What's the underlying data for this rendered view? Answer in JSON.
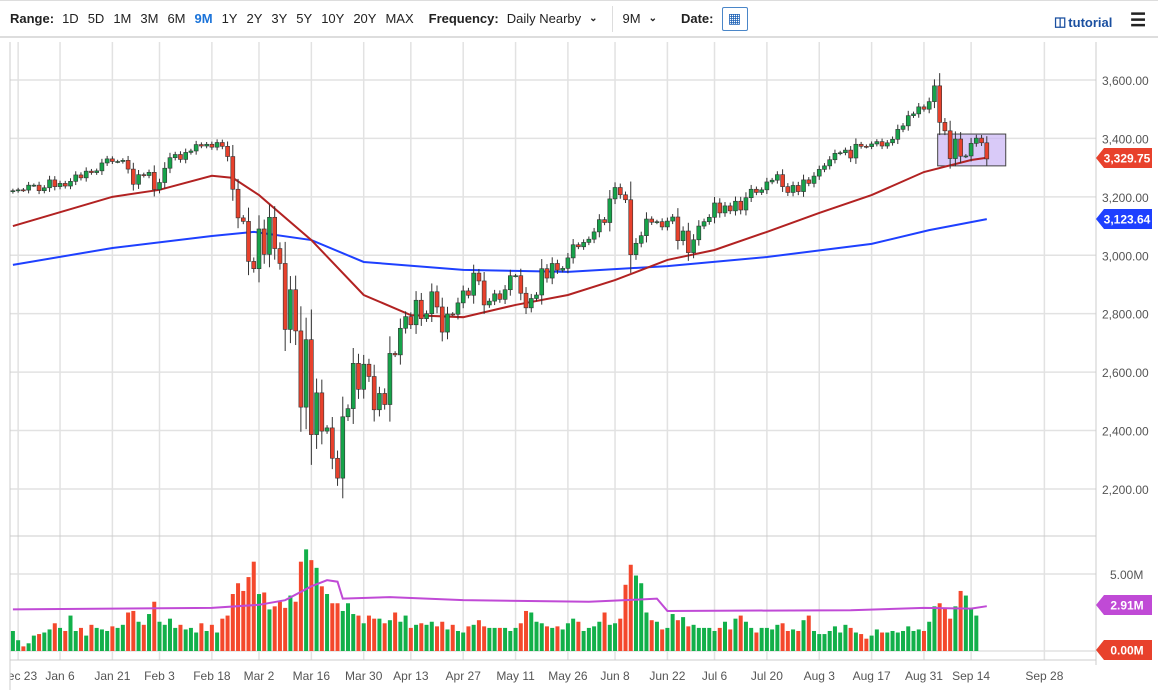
{
  "toolbar": {
    "range_label": "Range:",
    "ranges": [
      "1D",
      "5D",
      "1M",
      "3M",
      "6M",
      "9M",
      "1Y",
      "2Y",
      "3Y",
      "5Y",
      "10Y",
      "20Y",
      "MAX"
    ],
    "active_range": "9M",
    "frequency_label": "Frequency:",
    "frequency_value": "Daily Nearby",
    "period_value": "9M",
    "date_label": "Date:",
    "tutorial_label": "tutorial",
    "icons": {
      "calendar": "calendar-icon",
      "tutorial": "film-icon",
      "menu": "hamburger-menu-icon"
    }
  },
  "chart_data": [
    {
      "type": "candlestick",
      "title": "",
      "ylim": [
        2100,
        3700
      ],
      "y_ticks": [
        "2,200.00",
        "2,400.00",
        "2,600.00",
        "2,800.00",
        "3,000.00",
        "3,200.00",
        "3,400.00",
        "3,600.00"
      ],
      "y_tick_values": [
        2200,
        2400,
        2600,
        2800,
        3000,
        3200,
        3400,
        3600
      ],
      "grid": true,
      "colors": {
        "up": "#16a34a",
        "down": "#e8412c",
        "ma_red": "#b22222",
        "ma_blue": "#1e40ff",
        "box": "#c9b3f5"
      },
      "x_ticks": [
        {
          "label": "Dec 23",
          "index": 1
        },
        {
          "label": "Jan 6",
          "index": 9
        },
        {
          "label": "Jan 21",
          "index": 19
        },
        {
          "label": "Feb 3",
          "index": 28
        },
        {
          "label": "Feb 18",
          "index": 38
        },
        {
          "label": "Mar 2",
          "index": 47
        },
        {
          "label": "Mar 16",
          "index": 57
        },
        {
          "label": "Mar 30",
          "index": 67
        },
        {
          "label": "Apr 13",
          "index": 76
        },
        {
          "label": "Apr 27",
          "index": 86
        },
        {
          "label": "May 11",
          "index": 96
        },
        {
          "label": "May 26",
          "index": 106
        },
        {
          "label": "Jun 8",
          "index": 115
        },
        {
          "label": "Jun 22",
          "index": 125
        },
        {
          "label": "Jul 6",
          "index": 134
        },
        {
          "label": "Jul 20",
          "index": 144
        },
        {
          "label": "Aug 3",
          "index": 154
        },
        {
          "label": "Aug 17",
          "index": 164
        },
        {
          "label": "Aug 31",
          "index": 174
        },
        {
          "label": "Sep 14",
          "index": 183
        },
        {
          "label": "Sep 28",
          "index": 197
        }
      ],
      "close": [
        3221,
        3224,
        3223,
        3240,
        3240,
        3221,
        3231,
        3258,
        3235,
        3246,
        3237,
        3253,
        3275,
        3265,
        3288,
        3283,
        3289,
        3316,
        3330,
        3321,
        3321,
        3325,
        3295,
        3243,
        3276,
        3273,
        3284,
        3225,
        3249,
        3298,
        3334,
        3345,
        3328,
        3352,
        3357,
        3379,
        3374,
        3380,
        3370,
        3386,
        3373,
        3338,
        3226,
        3128,
        3116,
        2979,
        2954,
        3090,
        3003,
        3130,
        3023,
        2972,
        2746,
        2882,
        2741,
        2480,
        2711,
        2386,
        2529,
        2398,
        2409,
        2305,
        2237,
        2447,
        2475,
        2630,
        2541,
        2627,
        2585,
        2471,
        2527,
        2489,
        2664,
        2659,
        2750,
        2790,
        2762,
        2846,
        2783,
        2800,
        2875,
        2823,
        2737,
        2799,
        2798,
        2837,
        2878,
        2863,
        2939,
        2912,
        2830,
        2843,
        2868,
        2849,
        2882,
        2930,
        2930,
        2870,
        2820,
        2852,
        2864,
        2954,
        2922,
        2972,
        2949,
        2955,
        2991,
        3036,
        3029,
        3044,
        3055,
        3080,
        3122,
        3112,
        3193,
        3232,
        3207,
        3190,
        3002,
        3041,
        3067,
        3124,
        3113,
        3115,
        3097,
        3117,
        3131,
        3050,
        3083,
        3009,
        3053,
        3100,
        3115,
        3130,
        3179,
        3145,
        3169,
        3152,
        3185,
        3155,
        3197,
        3226,
        3215,
        3224,
        3251,
        3257,
        3276,
        3235,
        3215,
        3239,
        3218,
        3258,
        3246,
        3271,
        3294,
        3306,
        3327,
        3349,
        3351,
        3360,
        3333,
        3380,
        3373,
        3372,
        3381,
        3389,
        3374,
        3385,
        3397,
        3431,
        3443,
        3478,
        3484,
        3508,
        3500,
        3526,
        3580,
        3455,
        3426,
        3331,
        3398,
        3339,
        3340,
        3383,
        3401,
        3385,
        3329.75
      ],
      "ma_red": [
        [
          0,
          3100
        ],
        [
          19,
          3200
        ],
        [
          28,
          3224
        ],
        [
          38,
          3272
        ],
        [
          42,
          3265
        ],
        [
          47,
          3206
        ],
        [
          57,
          3052
        ],
        [
          67,
          2864
        ],
        [
          76,
          2795
        ],
        [
          86,
          2788
        ],
        [
          96,
          2830
        ],
        [
          106,
          2864
        ],
        [
          115,
          2915
        ],
        [
          125,
          2984
        ],
        [
          134,
          3018
        ],
        [
          144,
          3080
        ],
        [
          154,
          3145
        ],
        [
          164,
          3206
        ],
        [
          174,
          3285
        ],
        [
          183,
          3326
        ],
        [
          186,
          3334
        ]
      ],
      "ma_blue": [
        [
          0,
          2967
        ],
        [
          19,
          3025
        ],
        [
          38,
          3066
        ],
        [
          46,
          3080
        ],
        [
          57,
          3052
        ],
        [
          67,
          2977
        ],
        [
          86,
          2950
        ],
        [
          106,
          2943
        ],
        [
          125,
          2963
        ],
        [
          144,
          2994
        ],
        [
          164,
          3039
        ],
        [
          175,
          3086
        ],
        [
          186,
          3123.64
        ]
      ],
      "last_price": "3,329.75",
      "ma_blue_last": "3,123.64",
      "annotation_box": {
        "from_index": 177,
        "to_index": 190,
        "low": 3306,
        "high": 3415
      }
    },
    {
      "type": "bar",
      "ylim": [
        0,
        6.9
      ],
      "y_ticks": [
        "5.00M"
      ],
      "y_tick_values": [
        5
      ],
      "unit": "M",
      "colors": {
        "up": "#12b04a",
        "down": "#f4482c",
        "ma": "#c04ad6"
      },
      "volume": [
        1.3,
        0.7,
        0.3,
        0.5,
        1.0,
        1.1,
        1.2,
        1.4,
        1.8,
        1.5,
        1.3,
        2.3,
        1.3,
        1.5,
        1.0,
        1.7,
        1.5,
        1.4,
        1.3,
        1.6,
        1.5,
        1.7,
        2.5,
        2.6,
        1.9,
        1.7,
        2.4,
        3.2,
        1.9,
        1.7,
        2.1,
        1.5,
        1.7,
        1.4,
        1.5,
        1.2,
        1.8,
        1.3,
        1.7,
        1.2,
        2.1,
        2.3,
        3.7,
        4.4,
        3.9,
        4.8,
        5.8,
        3.7,
        3.8,
        2.7,
        2.9,
        3.2,
        2.8,
        3.6,
        3.2,
        5.8,
        6.6,
        5.9,
        5.4,
        4.2,
        3.7,
        3.1,
        3.1,
        2.6,
        3.1,
        2.4,
        2.3,
        1.8,
        2.3,
        2.1,
        2.1,
        1.8,
        2.0,
        2.5,
        1.9,
        2.3,
        1.5,
        1.7,
        1.8,
        1.7,
        1.9,
        1.6,
        1.9,
        1.4,
        1.7,
        1.3,
        1.2,
        1.6,
        1.7,
        2.0,
        1.6,
        1.5,
        1.5,
        1.5,
        1.5,
        1.3,
        1.5,
        1.8,
        2.6,
        2.5,
        1.9,
        1.8,
        1.6,
        1.5,
        1.6,
        1.4,
        1.8,
        2.1,
        1.9,
        1.3,
        1.5,
        1.6,
        1.9,
        2.5,
        1.7,
        1.8,
        2.1,
        4.3,
        5.6,
        4.9,
        4.4,
        2.5,
        2.0,
        1.9,
        1.4,
        1.5,
        2.4,
        2.0,
        2.2,
        1.6,
        1.7,
        1.5,
        1.5,
        1.5,
        1.3,
        1.5,
        1.9,
        1.4,
        2.1,
        2.3,
        1.9,
        1.5,
        1.2,
        1.5,
        1.5,
        1.4,
        1.7,
        1.8,
        1.3,
        1.4,
        1.3,
        2.0,
        2.3,
        1.3,
        1.1,
        1.1,
        1.3,
        1.6,
        1.2,
        1.7,
        1.5,
        1.2,
        1.1,
        0.8,
        1.0,
        1.4,
        1.2,
        1.2,
        1.3,
        1.2,
        1.3,
        1.6,
        1.3,
        1.4,
        1.3,
        1.9,
        2.9,
        3.1,
        2.8,
        2.1,
        2.9,
        3.9,
        3.6,
        2.8,
        2.3
      ],
      "volume_ma": [
        [
          0,
          2.7
        ],
        [
          38,
          2.8
        ],
        [
          47,
          3.0
        ],
        [
          52,
          3.3
        ],
        [
          57,
          4.2
        ],
        [
          60,
          4.6
        ],
        [
          62,
          4.5
        ],
        [
          63,
          3.4
        ],
        [
          72,
          3.5
        ],
        [
          86,
          3.3
        ],
        [
          110,
          3.2
        ],
        [
          117,
          3.3
        ],
        [
          123,
          3.4
        ],
        [
          125,
          2.6
        ],
        [
          160,
          2.65
        ],
        [
          174,
          2.8
        ],
        [
          183,
          2.75
        ],
        [
          186,
          2.91
        ]
      ],
      "volume_ma_last": "2.91M",
      "last_volume_label": "0.00M"
    }
  ]
}
